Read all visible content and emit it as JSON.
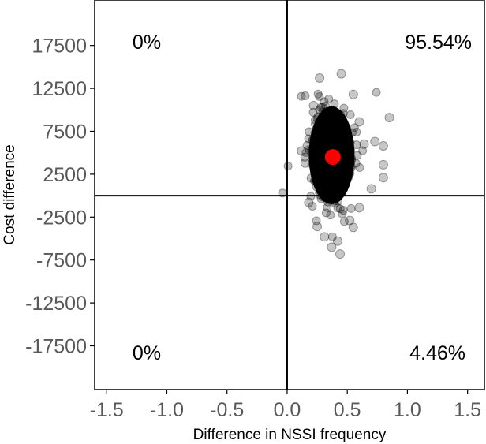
{
  "chart_data": {
    "type": "scatter",
    "title": "",
    "xlabel": "Difference in NSSI frequency",
    "ylabel": "Cost difference",
    "xlim": [
      -1.6,
      1.64
    ],
    "ylim": [
      -22600,
      22800
    ],
    "x_ticks": [
      -1.5,
      -1.0,
      -0.5,
      0.0,
      0.5,
      1.0,
      1.5
    ],
    "x_tick_labels": [
      "-1.5",
      "-1.0",
      "-0.5",
      "0.0",
      "0.5",
      "1.0",
      "1.5"
    ],
    "y_ticks": [
      17500,
      12500,
      7500,
      2500,
      -2500,
      -7500,
      -12500,
      -17500
    ],
    "y_tick_labels": [
      "17500",
      "12500",
      "7500",
      "2500",
      "-2500",
      "-7500",
      "-12500",
      "-17500"
    ],
    "grid": false,
    "reference_lines": {
      "x": 0,
      "y": 0
    },
    "quadrant_labels": {
      "top_left": "0%",
      "top_right": "95.54%",
      "bottom_left": "0%",
      "bottom_right": "4.46%"
    },
    "mean_point": {
      "x": 0.38,
      "y": 4500,
      "color": "#ff0000"
    },
    "cloud": {
      "center": {
        "x": 0.37,
        "y": 4700
      },
      "spread": {
        "x": 0.1,
        "y": 3000
      },
      "color": "#000000"
    },
    "outliers": [
      {
        "x": 0.27,
        "y": 13700
      },
      {
        "x": 0.45,
        "y": 14200
      },
      {
        "x": 0.85,
        "y": 9100
      },
      {
        "x": 0.64,
        "y": 6000
      },
      {
        "x": 0.73,
        "y": 6300
      },
      {
        "x": 0.8,
        "y": 5800
      },
      {
        "x": 0.8,
        "y": 3600
      },
      {
        "x": 0.8,
        "y": 2100
      },
      {
        "x": 0.12,
        "y": 5200
      },
      {
        "x": 0.15,
        "y": 3800
      },
      {
        "x": 0.22,
        "y": 10500
      },
      {
        "x": 0.55,
        "y": 11800
      },
      {
        "x": 0.6,
        "y": 8600
      },
      {
        "x": 0.42,
        "y": -5300
      },
      {
        "x": 0.37,
        "y": -6000
      },
      {
        "x": 0.31,
        "y": -4800
      },
      {
        "x": 0.44,
        "y": -6800
      },
      {
        "x": 0.52,
        "y": -2900
      },
      {
        "x": 0.55,
        "y": -3700
      },
      {
        "x": 0.25,
        "y": -3600
      },
      {
        "x": 0.18,
        "y": -800
      },
      {
        "x": 0.6,
        "y": -1400
      },
      {
        "x": 0.7,
        "y": 800
      }
    ]
  }
}
